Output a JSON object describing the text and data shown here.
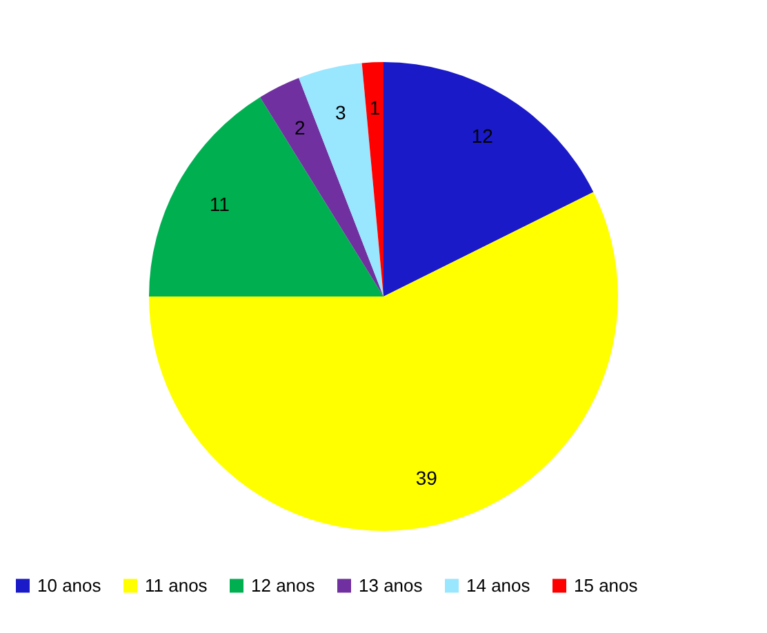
{
  "chart_data": {
    "type": "pie",
    "categories": [
      "10 anos",
      "11 anos",
      "12 anos",
      "13 anos",
      "14 anos",
      "15 anos"
    ],
    "values": [
      12,
      39,
      11,
      2,
      3,
      1
    ],
    "colors": [
      "#1a1ac8",
      "#ffff00",
      "#00b050",
      "#7030a0",
      "#99e6ff",
      "#ff0000"
    ],
    "data_labels": true,
    "legend": "bottom"
  }
}
